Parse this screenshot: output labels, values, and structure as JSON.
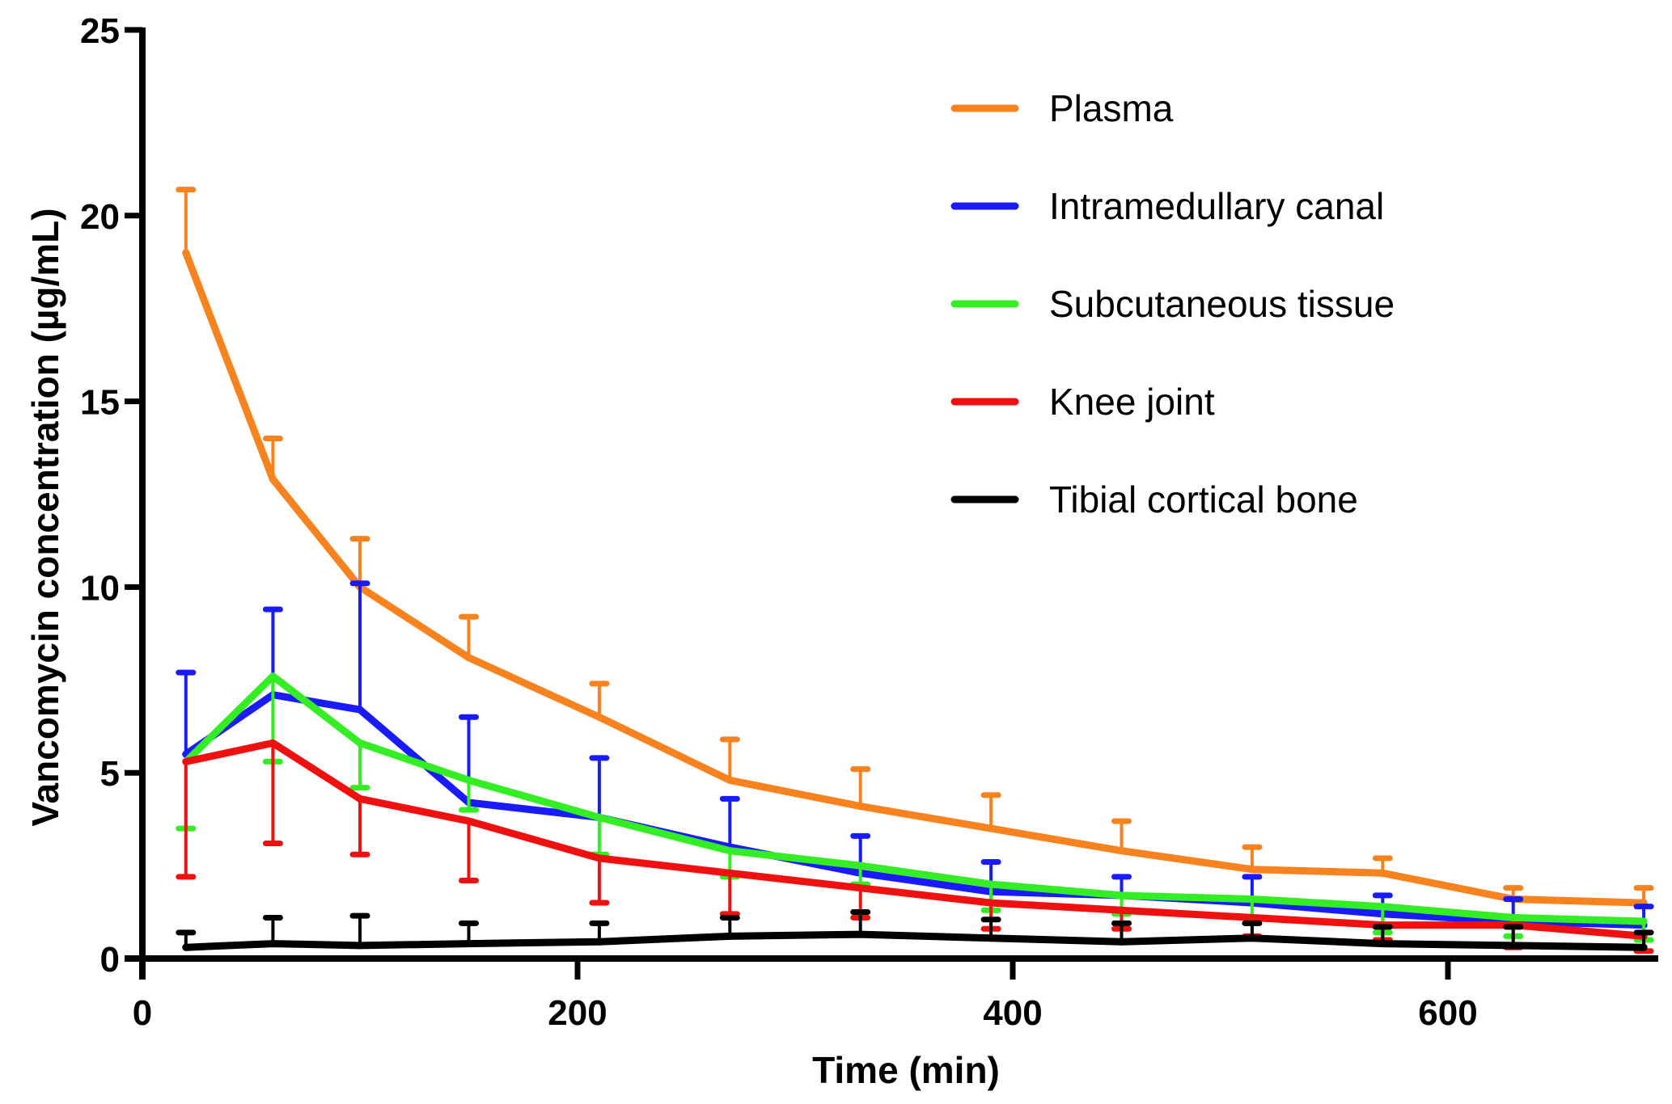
{
  "chart_data": {
    "type": "line",
    "title": "",
    "xlabel": "Time (min)",
    "ylabel": "Vancomycin concentration (µg/mL)",
    "xlim": [
      0,
      700
    ],
    "ylim": [
      0,
      25
    ],
    "xticks": [
      0,
      200,
      400,
      600
    ],
    "yticks": [
      0,
      5,
      10,
      15,
      20,
      25
    ],
    "grid": false,
    "legend_position": "top-right",
    "x": [
      20,
      60,
      100,
      150,
      210,
      270,
      330,
      390,
      450,
      510,
      570,
      630,
      690
    ],
    "series": [
      {
        "name": "Plasma",
        "color": "#f7821e",
        "error_direction": "up",
        "values": [
          19.0,
          12.9,
          10.0,
          8.1,
          6.5,
          4.8,
          4.1,
          3.5,
          2.9,
          2.4,
          2.3,
          1.6,
          1.5
        ],
        "error_bound": [
          20.7,
          14.0,
          11.3,
          9.2,
          7.4,
          5.9,
          5.1,
          4.4,
          3.7,
          3.0,
          2.7,
          1.9,
          1.9
        ]
      },
      {
        "name": "Intramedullary canal",
        "color": "#1a1aff",
        "error_direction": "up",
        "values": [
          5.5,
          7.1,
          6.7,
          4.2,
          3.8,
          3.0,
          2.3,
          1.8,
          1.7,
          1.5,
          1.2,
          1.0,
          0.9
        ],
        "error_bound": [
          7.7,
          9.4,
          10.1,
          6.5,
          5.4,
          4.3,
          3.3,
          2.6,
          2.2,
          2.2,
          1.7,
          1.6,
          1.4
        ]
      },
      {
        "name": "Subcutaneous tissue",
        "color": "#33ee22",
        "error_direction": "down",
        "values": [
          5.3,
          7.6,
          5.8,
          4.8,
          3.8,
          2.9,
          2.5,
          2.0,
          1.7,
          1.6,
          1.4,
          1.1,
          1.0
        ],
        "error_bound": [
          3.5,
          5.3,
          4.6,
          4.0,
          2.8,
          2.2,
          2.0,
          1.3,
          1.2,
          1.1,
          0.7,
          0.6,
          0.5
        ]
      },
      {
        "name": "Knee joint",
        "color": "#f01010",
        "error_direction": "down",
        "values": [
          5.3,
          5.8,
          4.3,
          3.7,
          2.7,
          2.3,
          1.9,
          1.5,
          1.3,
          1.1,
          0.9,
          0.9,
          0.6
        ],
        "error_bound": [
          2.2,
          3.1,
          2.8,
          2.1,
          1.5,
          1.2,
          1.1,
          0.8,
          0.8,
          0.6,
          0.5,
          0.3,
          0.2
        ]
      },
      {
        "name": "Tibial cortical bone",
        "color": "#000000",
        "error_direction": "up",
        "values": [
          0.3,
          0.4,
          0.35,
          0.4,
          0.45,
          0.6,
          0.65,
          0.55,
          0.45,
          0.55,
          0.4,
          0.35,
          0.3
        ],
        "error_bound": [
          0.7,
          1.1,
          1.15,
          0.95,
          0.95,
          1.1,
          1.25,
          1.05,
          0.95,
          0.95,
          0.85,
          0.85,
          0.7
        ]
      }
    ]
  }
}
